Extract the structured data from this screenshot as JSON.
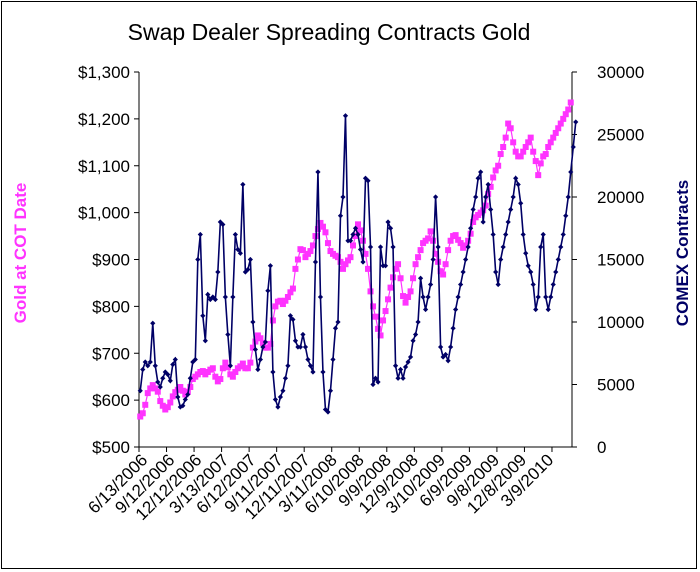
{
  "chart_data": {
    "type": "line",
    "title": "Swap Dealer Spreading Contracts Gold",
    "y_left_label": "Gold at COT Date",
    "y_right_label": "COMEX Contracts",
    "y_left_ticks": [
      "$500",
      "$600",
      "$700",
      "$800",
      "$900",
      "$1,000",
      "$1,100",
      "$1,200",
      "$1,300"
    ],
    "y_left_range": [
      500,
      1300
    ],
    "y_right_ticks": [
      "0",
      "5000",
      "10000",
      "15000",
      "20000",
      "25000",
      "30000"
    ],
    "y_right_range": [
      0,
      30000
    ],
    "x_ticks": [
      "6/13/2006",
      "9/12/2006",
      "12/12/2006",
      "3/13/2007",
      "6/12/2007",
      "9/11/2007",
      "12/11/2007",
      "3/11/2008",
      "6/10/2008",
      "9/9/2008",
      "12/9/2008",
      "3/10/2009",
      "6/9/2009",
      "9/8/2009",
      "12/8/2009",
      "3/9/2010"
    ],
    "legend": "none",
    "grid": false,
    "colors": {
      "gold": "#ff33ff",
      "contracts": "#000066"
    },
    "series": [
      {
        "axis": "left",
        "marker": "square",
        "values": [
          565,
          572,
          590,
          615,
          625,
          632,
          625,
          618,
          598,
          588,
          580,
          585,
          595,
          608,
          617,
          622,
          628,
          620,
          612,
          618,
          628,
          645,
          650,
          655,
          660,
          662,
          655,
          660,
          665,
          668,
          650,
          640,
          645,
          668,
          680,
          670,
          655,
          650,
          660,
          668,
          672,
          678,
          668,
          668,
          680,
          712,
          725,
          738,
          732,
          722,
          712,
          712,
          720,
          770,
          800,
          810,
          812,
          805,
          812,
          820,
          830,
          838,
          880,
          900,
          922,
          920,
          905,
          912,
          918,
          930,
          950,
          965,
          978,
          970,
          958,
          935,
          918,
          912,
          908,
          905,
          895,
          880,
          890,
          898,
          905,
          930,
          950,
          975,
          962,
          940,
          912,
          880,
          832,
          800,
          778,
          752,
          738,
          770,
          790,
          815,
          840,
          862,
          880,
          890,
          860,
          822,
          808,
          820,
          832,
          860,
          890,
          905,
          920,
          935,
          940,
          945,
          960,
          940,
          912,
          895,
          875,
          868,
          890,
          920,
          940,
          950,
          952,
          942,
          935,
          925,
          930,
          940,
          955,
          980,
          990,
          995,
          1000,
          1005,
          1015,
          1040,
          1055,
          1075,
          1090,
          1100,
          1125,
          1140,
          1160,
          1190,
          1180,
          1150,
          1130,
          1120,
          1120,
          1130,
          1140,
          1150,
          1160,
          1130,
          1110,
          1080,
          1105,
          1120,
          1125,
          1140,
          1150,
          1160,
          1170,
          1180,
          1190,
          1200,
          1210,
          1220,
          1235
        ]
      },
      {
        "axis": "right",
        "marker": "diamond",
        "values": [
          4500,
          6200,
          6800,
          6500,
          6800,
          9900,
          6500,
          5200,
          4800,
          5500,
          6000,
          5800,
          5300,
          6600,
          7000,
          4000,
          3200,
          3300,
          3800,
          4200,
          5500,
          6800,
          7000,
          15000,
          17000,
          10500,
          8500,
          12200,
          11800,
          12000,
          11800,
          14000,
          18000,
          17800,
          12000,
          9000,
          6500,
          12000,
          17000,
          15800,
          15500,
          21000,
          14000,
          14200,
          15000,
          10000,
          7800,
          6200,
          7000,
          8000,
          8400,
          12500,
          14500,
          6000,
          3800,
          3200,
          4000,
          4500,
          5500,
          6500,
          10500,
          10200,
          8500,
          8000,
          8000,
          9000,
          8000,
          7000,
          6500,
          6000,
          14800,
          22000,
          12000,
          6000,
          3000,
          2800,
          4500,
          7000,
          9500,
          10000,
          18500,
          20000,
          26500,
          16500,
          16500,
          17000,
          17500,
          17000,
          15800,
          14800,
          21500,
          21300,
          16000,
          5000,
          5500,
          5200,
          16000,
          14500,
          14500,
          18000,
          17500,
          16000,
          6500,
          5500,
          6200,
          5500,
          6400,
          6800,
          7200,
          8500,
          9000,
          10000,
          13500,
          12000,
          11000,
          12000,
          13000,
          15000,
          20000,
          16000,
          8000,
          7200,
          7400,
          6900,
          8000,
          9500,
          11000,
          12000,
          13000,
          14000,
          15000,
          16000,
          17500,
          19000,
          20000,
          21500,
          22000,
          18000,
          20000,
          21000,
          19000,
          17000,
          14000,
          13000,
          15000,
          16000,
          17000,
          18000,
          19000,
          20000,
          21500,
          21000,
          19500,
          17000,
          15500,
          14500,
          14000,
          13000,
          11000,
          12000,
          16000,
          17000,
          12000,
          11000,
          12000,
          13000,
          14000,
          15000,
          16000,
          17000,
          18500,
          20000,
          22000,
          24000,
          26000
        ]
      }
    ]
  }
}
